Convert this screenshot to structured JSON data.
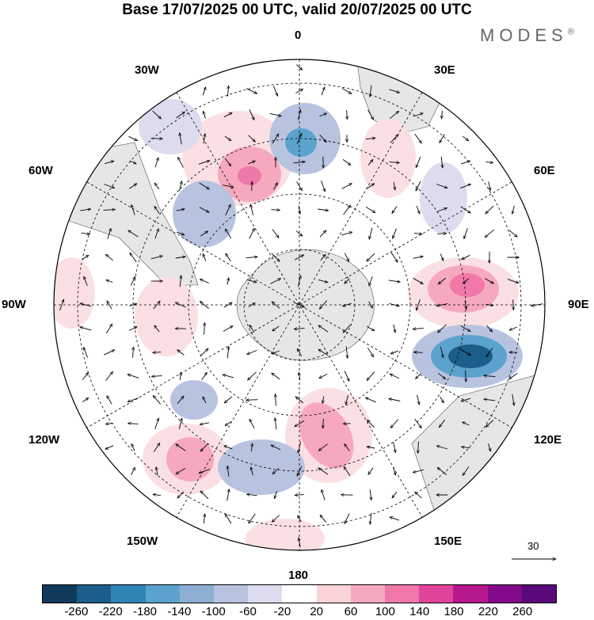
{
  "title": "Base 17/07/2025 00 UTC, valid 20/07/2025 00 UTC",
  "brand": "MODES",
  "brand_mark": "®",
  "longitude_labels": {
    "top": "0",
    "top_right": "30E",
    "upper_right": "60E",
    "right": "90E",
    "lower_right": "120E",
    "bottom_right": "150E",
    "bottom": "180",
    "bottom_left": "150W",
    "lower_left": "120W",
    "left": "90W",
    "upper_left": "60W",
    "top_left": "30W"
  },
  "reference_vector": "30",
  "legend": {
    "ticks": [
      "-260",
      "-220",
      "-180",
      "-140",
      "-100",
      "-60",
      "-20",
      "20",
      "60",
      "100",
      "140",
      "180",
      "220",
      "260"
    ],
    "colors": [
      "#0f3a5c",
      "#1b5e8a",
      "#2f86b6",
      "#5ba3cd",
      "#8eaed3",
      "#b8c3e0",
      "#dcdcee",
      "#ffffff",
      "#fad4d9",
      "#f6a9bd",
      "#ef78a8",
      "#e0449a",
      "#b5178c",
      "#84098a",
      "#5a0a78"
    ]
  },
  "map_colors": {
    "land": "#e6e6e6",
    "neg_light": "#e0e0ef",
    "neg_mid": "#b8c3e0",
    "neg_strong": "#5ba3cd",
    "neg_core": "#1b5e8a",
    "pos_light": "#fbe0e3",
    "pos_mid": "#f6a9bd",
    "pos_strong": "#ef78a8"
  }
}
